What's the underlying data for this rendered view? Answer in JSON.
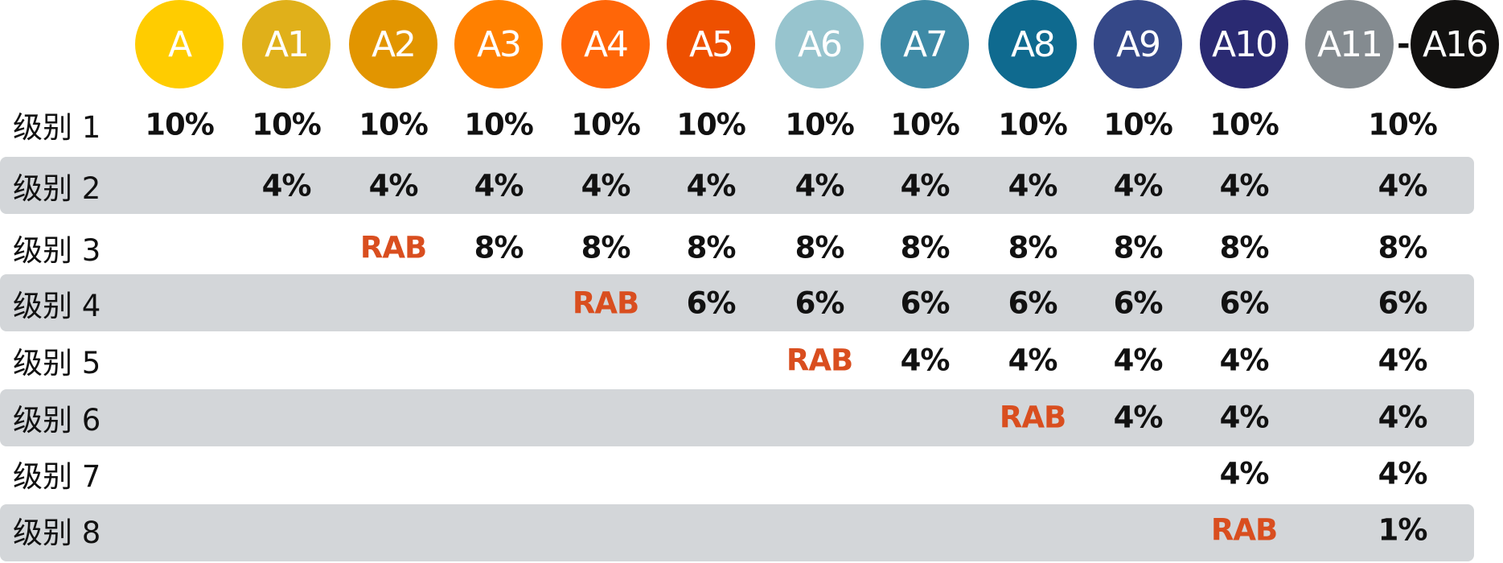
{
  "headers": [
    {
      "label": "A",
      "color": "#FFCC00"
    },
    {
      "label": "A1",
      "color": "#E0B01A"
    },
    {
      "label": "A2",
      "color": "#E29500"
    },
    {
      "label": "A3",
      "color": "#FF8000"
    },
    {
      "label": "A4",
      "color": "#FF6608"
    },
    {
      "label": "A5",
      "color": "#EE5000"
    },
    {
      "label": "A6",
      "color": "#97C4CE"
    },
    {
      "label": "A7",
      "color": "#3E8AA6"
    },
    {
      "label": "A8",
      "color": "#0F6A8F"
    },
    {
      "label": "A9",
      "color": "#354888"
    },
    {
      "label": "A10",
      "color": "#2A2A72"
    },
    {
      "label": "A11",
      "color": "#848B90"
    },
    {
      "label": "A16",
      "color": "#121110"
    }
  ],
  "range_separator": "-",
  "highlight_color": "#D94E1F",
  "text_color": "#111111",
  "band_color": "#D3D6D9",
  "rows": [
    {
      "label": "级别 1",
      "values": [
        "10%",
        "10%",
        "10%",
        "10%",
        "10%",
        "10%",
        "10%",
        "10%",
        "10%",
        "10%",
        "10%",
        "10%"
      ]
    },
    {
      "label": "级别 2",
      "values": [
        null,
        "4%",
        "4%",
        "4%",
        "4%",
        "4%",
        "4%",
        "4%",
        "4%",
        "4%",
        "4%",
        "4%"
      ]
    },
    {
      "label": "级别 3",
      "values": [
        null,
        null,
        "RAB",
        "8%",
        "8%",
        "8%",
        "8%",
        "8%",
        "8%",
        "8%",
        "8%",
        "8%"
      ]
    },
    {
      "label": "级别 4",
      "values": [
        null,
        null,
        null,
        null,
        "RAB",
        "6%",
        "6%",
        "6%",
        "6%",
        "6%",
        "6%",
        "6%"
      ]
    },
    {
      "label": "级别 5",
      "values": [
        null,
        null,
        null,
        null,
        null,
        null,
        "RAB",
        "4%",
        "4%",
        "4%",
        "4%",
        "4%"
      ]
    },
    {
      "label": "级别 6",
      "values": [
        null,
        null,
        null,
        null,
        null,
        null,
        null,
        null,
        "RAB",
        "4%",
        "4%",
        "4%"
      ]
    },
    {
      "label": "级别 7",
      "values": [
        null,
        null,
        null,
        null,
        null,
        null,
        null,
        null,
        null,
        null,
        "4%",
        "4%"
      ]
    },
    {
      "label": "级别 8",
      "values": [
        null,
        null,
        null,
        null,
        null,
        null,
        null,
        null,
        null,
        null,
        "RAB",
        "1%"
      ]
    }
  ]
}
